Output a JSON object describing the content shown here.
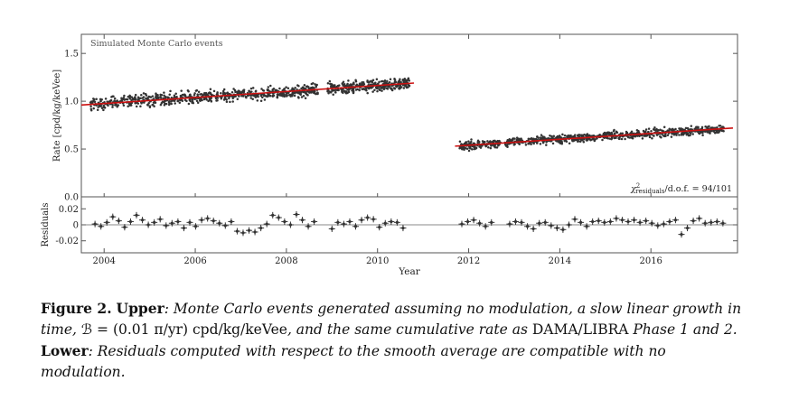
{
  "chart_data": [
    {
      "type": "scatter",
      "panel": "upper",
      "annotation": "Simulated Monte Carlo events",
      "ylabel": "Rate [cpd/kg/keVee]",
      "xlim": [
        2003.5,
        2017.9
      ],
      "ylim": [
        0.0,
        1.7
      ],
      "yticks": [
        0.0,
        0.5,
        1.0,
        1.5
      ],
      "ytick_labels": [
        "0.0",
        "0.5",
        "1.0",
        "1.5"
      ],
      "chi2_label": {
        "prefix": "χ",
        "sup": "2",
        "sub": "residuals",
        "suffix": "/d.o.f. = 94/101"
      },
      "line_color": "#cc1111",
      "point_color": "#333333",
      "segments": [
        {
          "x_start": 2003.7,
          "x_end": 2008.7,
          "y_start": 0.97,
          "y_end": 1.12,
          "spread": 0.06,
          "n_points": 700
        },
        {
          "x_start": 2008.9,
          "x_end": 2010.7,
          "y_start": 1.13,
          "y_end": 1.19,
          "spread": 0.06,
          "n_points": 320
        },
        {
          "x_start": 2011.8,
          "x_end": 2012.7,
          "y_start": 0.53,
          "y_end": 0.56,
          "spread": 0.04,
          "n_points": 150
        },
        {
          "x_start": 2012.8,
          "x_end": 2017.6,
          "y_start": 0.57,
          "y_end": 0.71,
          "spread": 0.04,
          "n_points": 700
        }
      ],
      "fit_lines": [
        {
          "x": [
            2003.5,
            2010.8
          ],
          "y": [
            0.96,
            1.19
          ]
        },
        {
          "x": [
            2011.7,
            2017.8
          ],
          "y": [
            0.53,
            0.72
          ]
        }
      ]
    },
    {
      "type": "scatter",
      "panel": "lower",
      "ylabel": "Residuals",
      "xlabel": "Year",
      "xlim": [
        2003.5,
        2017.9
      ],
      "ylim": [
        -0.035,
        0.035
      ],
      "yticks": [
        -0.02,
        0,
        0.02
      ],
      "ytick_labels": [
        "-0.02",
        "0",
        "0.02"
      ],
      "xticks": [
        2004,
        2006,
        2008,
        2010,
        2012,
        2014,
        2016
      ],
      "xtick_labels": [
        "2004",
        "2006",
        "2008",
        "2010",
        "2012",
        "2014",
        "2016"
      ],
      "error_bar": {
        "x_half": 0.07,
        "y_half": 0.004
      },
      "points": [
        [
          2003.8,
          0.001
        ],
        [
          2003.93,
          -0.002
        ],
        [
          2004.06,
          0.003
        ],
        [
          2004.19,
          0.01
        ],
        [
          2004.32,
          0.005
        ],
        [
          2004.45,
          -0.003
        ],
        [
          2004.58,
          0.004
        ],
        [
          2004.71,
          0.012
        ],
        [
          2004.84,
          0.006
        ],
        [
          2004.97,
          0.0
        ],
        [
          2005.1,
          0.003
        ],
        [
          2005.23,
          0.007
        ],
        [
          2005.36,
          -0.001
        ],
        [
          2005.49,
          0.002
        ],
        [
          2005.62,
          0.004
        ],
        [
          2005.75,
          -0.004
        ],
        [
          2005.88,
          0.003
        ],
        [
          2006.01,
          -0.002
        ],
        [
          2006.14,
          0.006
        ],
        [
          2006.27,
          0.008
        ],
        [
          2006.4,
          0.005
        ],
        [
          2006.53,
          0.002
        ],
        [
          2006.66,
          -0.001
        ],
        [
          2006.79,
          0.004
        ],
        [
          2006.92,
          -0.008
        ],
        [
          2007.05,
          -0.01
        ],
        [
          2007.18,
          -0.007
        ],
        [
          2007.31,
          -0.009
        ],
        [
          2007.44,
          -0.004
        ],
        [
          2007.57,
          0.001
        ],
        [
          2007.7,
          0.012
        ],
        [
          2007.83,
          0.009
        ],
        [
          2007.96,
          0.004
        ],
        [
          2008.09,
          0.0
        ],
        [
          2008.22,
          0.013
        ],
        [
          2008.35,
          0.006
        ],
        [
          2008.48,
          -0.002
        ],
        [
          2008.61,
          0.004
        ],
        [
          2009.0,
          -0.005
        ],
        [
          2009.13,
          0.003
        ],
        [
          2009.26,
          0.001
        ],
        [
          2009.39,
          0.004
        ],
        [
          2009.52,
          -0.002
        ],
        [
          2009.65,
          0.006
        ],
        [
          2009.78,
          0.009
        ],
        [
          2009.91,
          0.007
        ],
        [
          2010.04,
          -0.003
        ],
        [
          2010.17,
          0.002
        ],
        [
          2010.3,
          0.004
        ],
        [
          2010.43,
          0.003
        ],
        [
          2010.56,
          -0.004
        ],
        [
          2011.85,
          0.001
        ],
        [
          2011.98,
          0.004
        ],
        [
          2012.11,
          0.006
        ],
        [
          2012.24,
          0.002
        ],
        [
          2012.37,
          -0.002
        ],
        [
          2012.5,
          0.003
        ],
        [
          2012.9,
          0.001
        ],
        [
          2013.03,
          0.004
        ],
        [
          2013.16,
          0.003
        ],
        [
          2013.29,
          -0.002
        ],
        [
          2013.42,
          -0.005
        ],
        [
          2013.55,
          0.002
        ],
        [
          2013.68,
          0.003
        ],
        [
          2013.81,
          -0.001
        ],
        [
          2013.94,
          -0.004
        ],
        [
          2014.07,
          -0.006
        ],
        [
          2014.2,
          0.0
        ],
        [
          2014.33,
          0.007
        ],
        [
          2014.46,
          0.003
        ],
        [
          2014.59,
          -0.002
        ],
        [
          2014.72,
          0.004
        ],
        [
          2014.85,
          0.005
        ],
        [
          2014.98,
          0.003
        ],
        [
          2015.11,
          0.004
        ],
        [
          2015.24,
          0.008
        ],
        [
          2015.37,
          0.006
        ],
        [
          2015.5,
          0.004
        ],
        [
          2015.63,
          0.006
        ],
        [
          2015.76,
          0.003
        ],
        [
          2015.89,
          0.005
        ],
        [
          2016.02,
          0.002
        ],
        [
          2016.15,
          -0.001
        ],
        [
          2016.28,
          0.001
        ],
        [
          2016.41,
          0.004
        ],
        [
          2016.54,
          0.006
        ],
        [
          2016.67,
          -0.012
        ],
        [
          2016.8,
          -0.004
        ],
        [
          2016.93,
          0.005
        ],
        [
          2017.06,
          0.008
        ],
        [
          2017.19,
          0.002
        ],
        [
          2017.32,
          0.003
        ],
        [
          2017.45,
          0.004
        ],
        [
          2017.58,
          0.002
        ]
      ]
    }
  ],
  "caption": {
    "label": "Figure 2.",
    "upper_label": "Upper",
    "upper_text_1": ": Monte Carlo events generated assuming no modulation, a slow linear growth in time,",
    "b_symbol": "ℬ",
    "b_expr": " = (0.01 π/yr) cpd/kg/keVee",
    "upper_text_2": ", and the same cumulative rate as ",
    "experiment": "DAMA/LIBRA",
    "upper_text_3": " Phase 1 and 2.",
    "lower_label": "Lower",
    "lower_text": ": Residuals computed with respect to the smooth average are compatible with no modulation."
  }
}
